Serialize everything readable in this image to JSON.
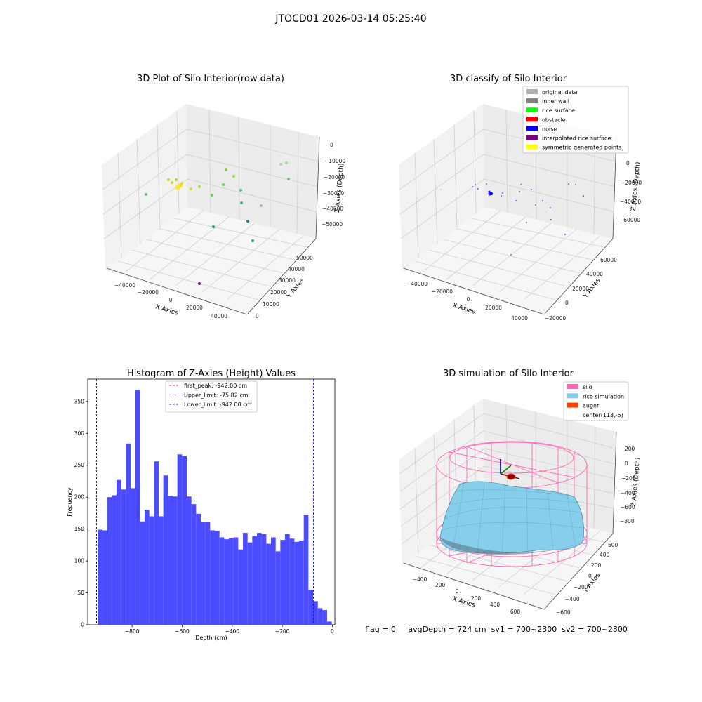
{
  "figure": {
    "suptitle": "JTOCD01 2026-03-14 05:25:40",
    "status_text": "flag = 0     avgDepth = 724 cm  sv1 = 700~2300  sv2 = 700~2300"
  },
  "colors": {
    "pane": "#f2f2f2",
    "grid": "#c8c8c8",
    "hist_bar": "#4b4bff",
    "first_peak": "#ff0000",
    "upper_limit": "#0000cc",
    "lower_limit": "#0000cc",
    "silo_wire": "#ff69b4",
    "rice_fill": "#87ceeb",
    "rice_mesh": "#4a90a8",
    "auger": "#ff4500"
  },
  "chart_data": [
    {
      "type": "scatter",
      "title": "3D Plot of Silo Interior(row data)",
      "xlabel": "X Axies",
      "ylabel": "Y Axies",
      "zlabel": "Z Axies (Depth)",
      "x_ticks": [
        "−40000",
        "−20000",
        "0",
        "20000",
        "40000"
      ],
      "y_ticks": [
        "0",
        "10000",
        "20000",
        "30000",
        "40000",
        "50000"
      ],
      "z_ticks": [
        "0",
        "−10000",
        "−20000",
        "−30000",
        "−40000",
        "−50000"
      ],
      "colormap": "viridis"
    },
    {
      "type": "scatter",
      "title": "3D classify of Silo Interior",
      "xlabel": "X Axies",
      "ylabel": "Y Axies",
      "zlabel": "Z Axies (Depth)",
      "x_ticks": [
        "−40000",
        "−20000",
        "0",
        "20000",
        "40000"
      ],
      "y_ticks": [
        "−20000",
        "0",
        "20000",
        "40000",
        "60000"
      ],
      "z_ticks": [
        "0",
        "−20000",
        "−40000",
        "−60000"
      ],
      "legend": [
        {
          "label": "original data",
          "color": "#b0b0b0"
        },
        {
          "label": "inner wall",
          "color": "#808080"
        },
        {
          "label": "rice surface",
          "color": "#00ff00"
        },
        {
          "label": "obstacle",
          "color": "#ff0000"
        },
        {
          "label": "noise",
          "color": "#0000ff"
        },
        {
          "label": "interpolated rice surface",
          "color": "#800080"
        },
        {
          "label": "symmetric generated points",
          "color": "#ffff00"
        }
      ],
      "legend_loc": "upper right"
    },
    {
      "type": "bar",
      "title": "Histogram of Z-Axies (Height) Values",
      "xlabel": "Depth (cm)",
      "ylabel": "Frequency",
      "xlim": [
        -977,
        10
      ],
      "ylim": [
        0,
        385
      ],
      "x_ticks": [
        -800,
        -600,
        -400,
        -200,
        0
      ],
      "x_tick_labels": [
        "−800",
        "−600",
        "−400",
        "−200",
        "0"
      ],
      "y_ticks": [
        0,
        50,
        100,
        150,
        200,
        250,
        300,
        350
      ],
      "bin_start": -937,
      "bin_width": 18.7,
      "values": [
        149,
        148,
        200,
        203,
        227,
        212,
        284,
        214,
        368,
        162,
        180,
        170,
        256,
        170,
        234,
        202,
        201,
        267,
        264,
        201,
        189,
        174,
        161,
        161,
        148,
        147,
        137,
        134,
        136,
        137,
        118,
        144,
        129,
        139,
        144,
        142,
        127,
        137,
        115,
        133,
        142,
        135,
        130,
        132,
        172,
        55,
        37,
        26,
        23,
        5
      ],
      "vlines": [
        {
          "name": "first_peak: -942.00 cm",
          "x": -942.0,
          "style": "dashed",
          "color_key": "first_peak"
        },
        {
          "name": "Upper_limit: -75.82 cm",
          "x": -75.82,
          "style": "dashed",
          "color_key": "upper_limit"
        },
        {
          "name": "Lower_limit: -942.00 cm",
          "x": -942.0,
          "style": "dashed",
          "color_key": "lower_limit"
        }
      ],
      "legend_loc": "upper center"
    },
    {
      "type": "surface",
      "title": "3D simulation of Silo Interior",
      "xlabel": "X Axies",
      "ylabel": "Y Axies",
      "zlabel": "Z Axies (Depth)",
      "x_ticks": [
        "−400",
        "−200",
        "0",
        "200",
        "400",
        "600"
      ],
      "y_ticks": [
        "−600",
        "−400",
        "−200",
        "0",
        "200",
        "400",
        "600"
      ],
      "z_ticks": [
        "200",
        "0",
        "−200",
        "−400",
        "−600",
        "−800"
      ],
      "legend": [
        {
          "label": "silo",
          "color": "#ff69b4"
        },
        {
          "label": "rice simulation",
          "color": "#87ceeb"
        },
        {
          "label": "auger",
          "color": "#ff4500"
        },
        {
          "label": "center(113,-5)",
          "color": ""
        }
      ],
      "legend_loc": "upper right"
    }
  ]
}
